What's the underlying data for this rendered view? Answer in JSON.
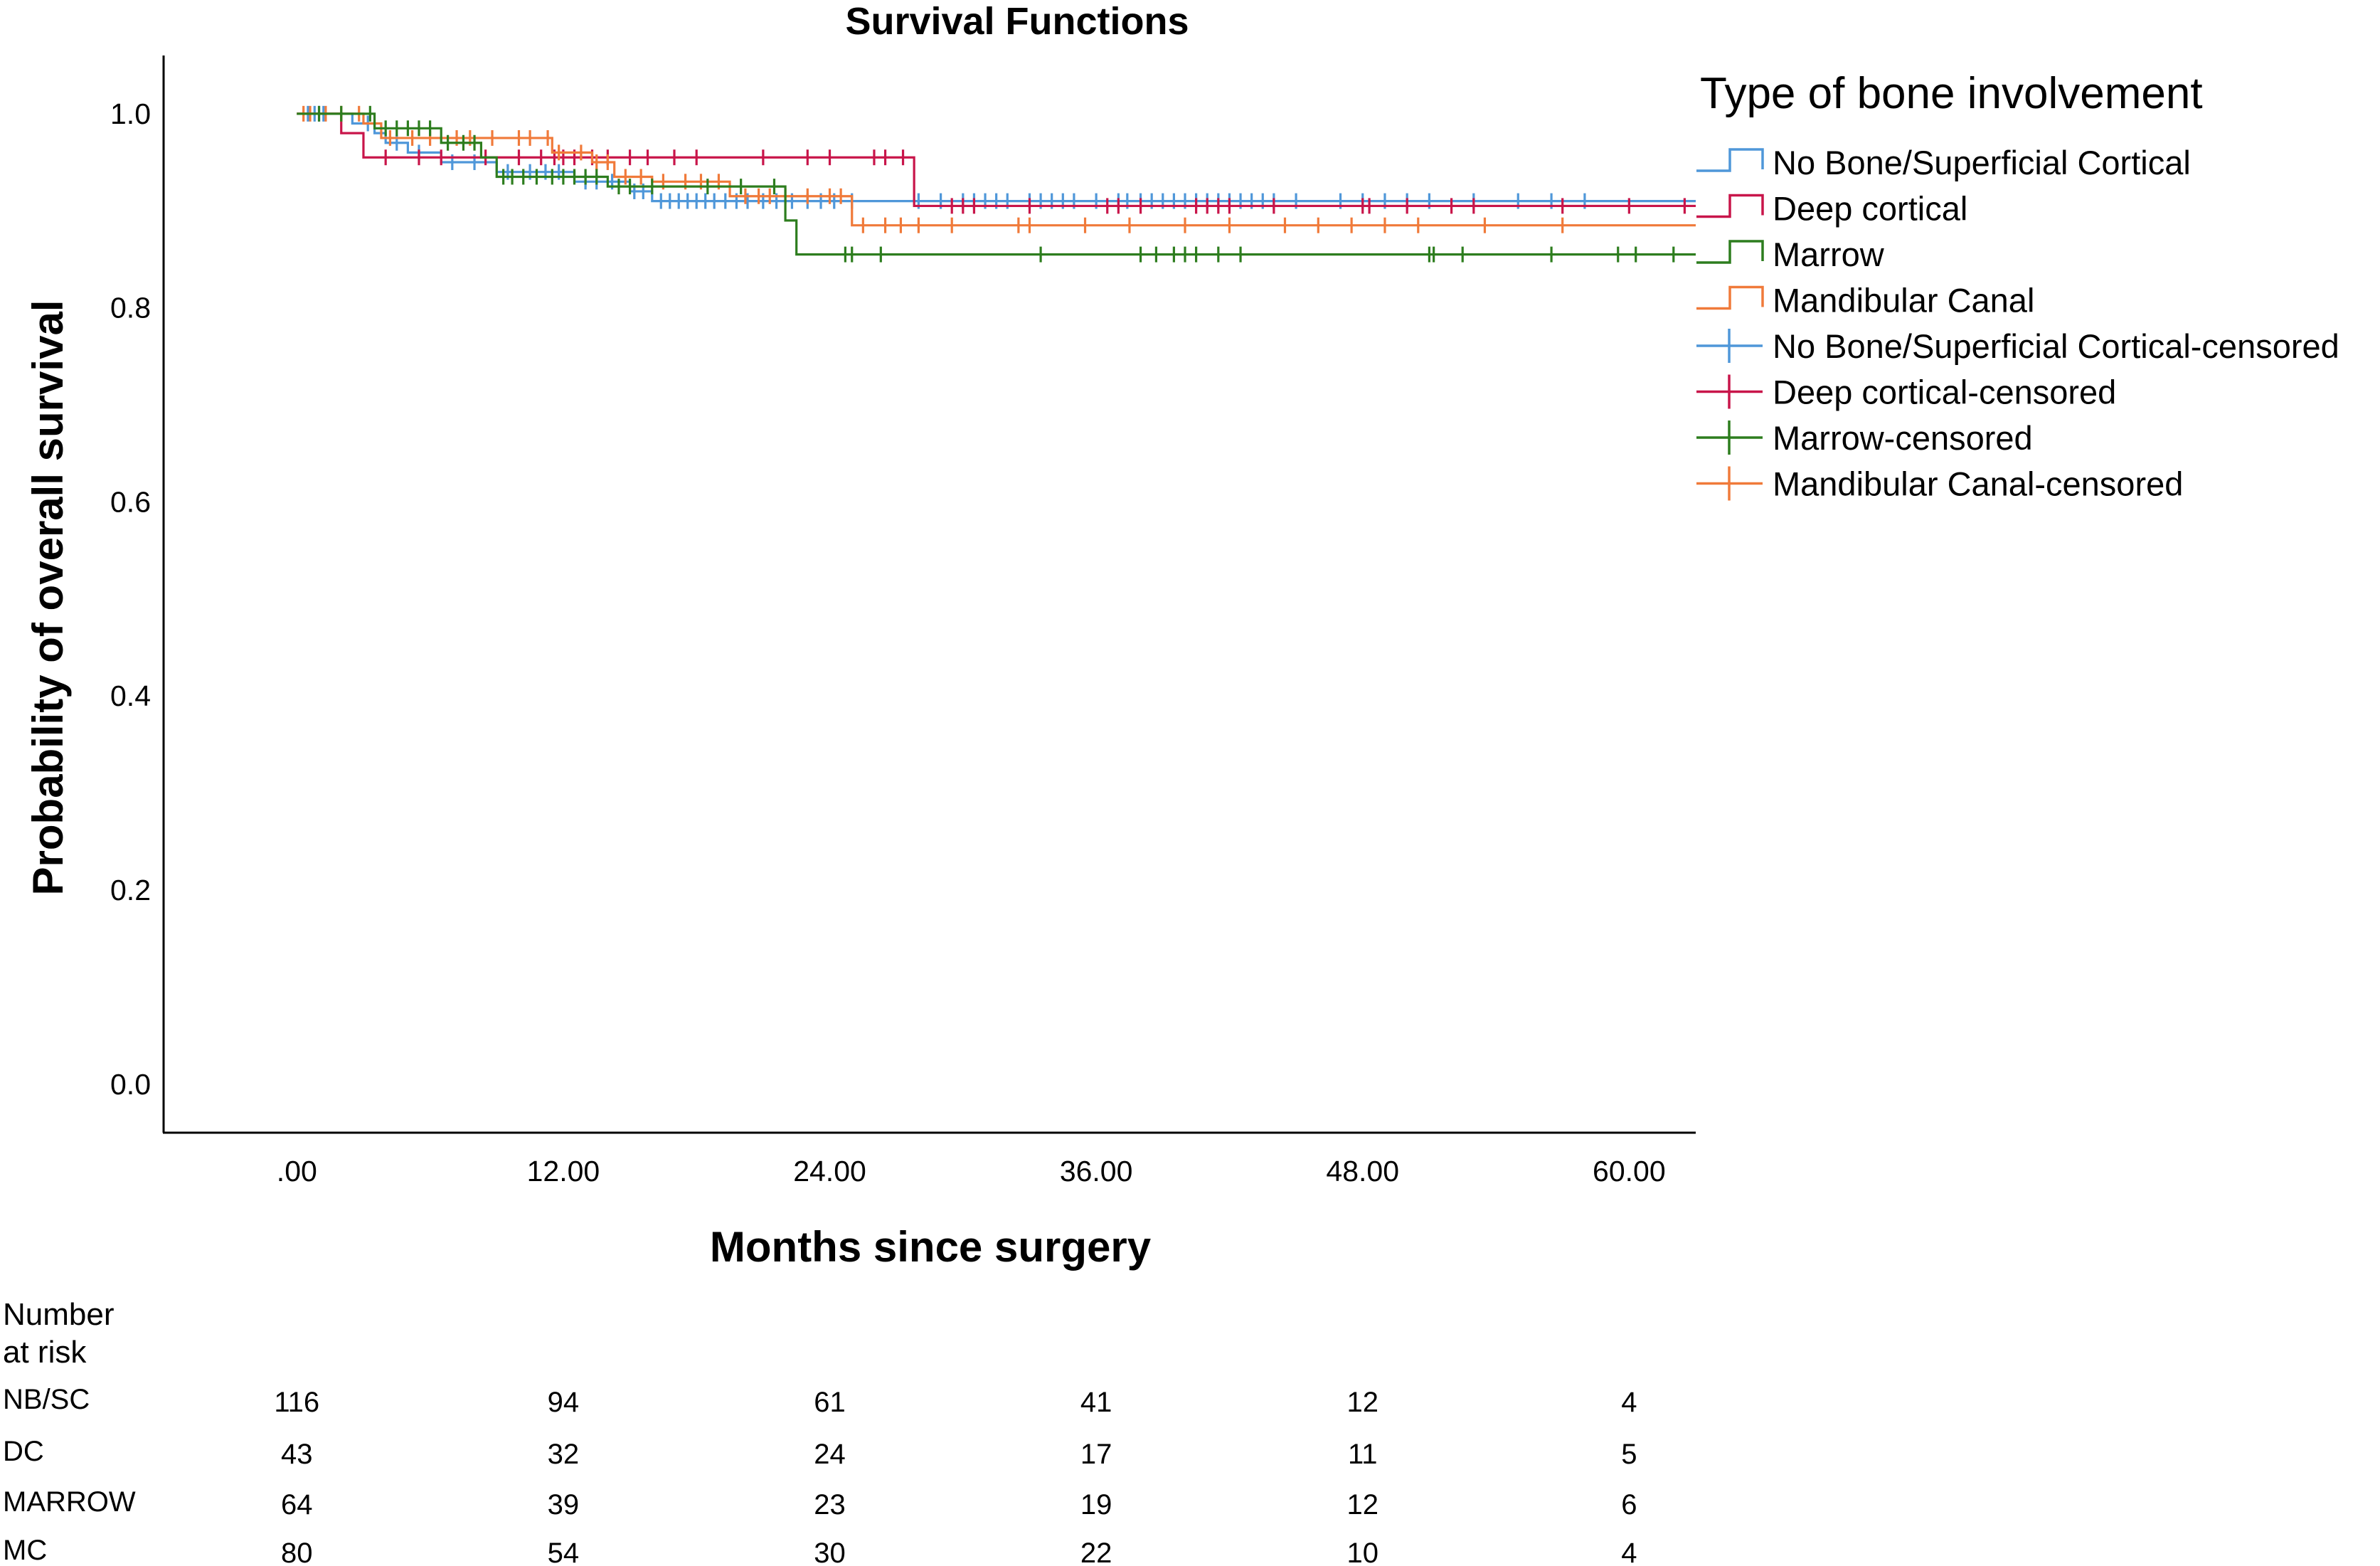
{
  "chart_data": {
    "type": "line",
    "title": "Survival Functions",
    "xlabel": "Months since surgery",
    "ylabel": "Probability of overall survival",
    "xlim": [
      -6,
      63
    ],
    "ylim": [
      -0.05,
      1.06
    ],
    "x_ticks": [
      0,
      12,
      24,
      36,
      48,
      60
    ],
    "x_tick_labels": [
      ".00",
      "12.00",
      "24.00",
      "36.00",
      "48.00",
      "60.00"
    ],
    "y_ticks": [
      0,
      0.2,
      0.4,
      0.6,
      0.8,
      1.0
    ],
    "y_tick_labels": [
      "0.0",
      "0.2",
      "0.4",
      "0.6",
      "0.8",
      "1.0"
    ],
    "grid": false,
    "legend": {
      "title": "Type of bone involvement",
      "position": "top-right",
      "entries": [
        {
          "label": "No Bone/Superficial Cortical",
          "kind": "step",
          "series": 0
        },
        {
          "label": "Deep cortical",
          "kind": "step",
          "series": 1
        },
        {
          "label": "Marrow",
          "kind": "step",
          "series": 2
        },
        {
          "label": "Mandibular Canal",
          "kind": "step",
          "series": 3
        },
        {
          "label": "No Bone/Superficial Cortical-censored",
          "kind": "censor",
          "series": 0
        },
        {
          "label": "Deep cortical-censored",
          "kind": "censor",
          "series": 1
        },
        {
          "label": "Marrow-censored",
          "kind": "censor",
          "series": 2
        },
        {
          "label": "Mandibular Canal-censored",
          "kind": "censor",
          "series": 3
        }
      ]
    },
    "series": [
      {
        "name": "No Bone/Superficial Cortical",
        "color": "#4f97d9",
        "steps": [
          [
            0,
            1.0
          ],
          [
            2.5,
            0.99
          ],
          [
            3.5,
            0.98
          ],
          [
            4.0,
            0.97
          ],
          [
            5.0,
            0.96
          ],
          [
            6.5,
            0.95
          ],
          [
            9.0,
            0.94
          ],
          [
            12.5,
            0.93
          ],
          [
            15.0,
            0.92
          ],
          [
            16.0,
            0.91
          ]
        ],
        "end_x": 63,
        "censored": [
          0.5,
          0.8,
          1.0,
          1.2,
          3.2,
          4.5,
          5.5,
          7.0,
          8.0,
          9.5,
          10.5,
          11.2,
          11.8,
          13.0,
          13.5,
          14.2,
          15.2,
          15.6,
          16.4,
          16.8,
          17.2,
          17.6,
          18.0,
          18.4,
          18.8,
          19.3,
          19.8,
          20.3,
          21.0,
          21.6,
          22.3,
          23.0,
          23.6,
          24.2,
          25.0,
          28.0,
          29.0,
          30.0,
          30.5,
          31.0,
          31.5,
          32.0,
          33.0,
          33.5,
          34.0,
          34.5,
          35.0,
          36.0,
          37.0,
          37.4,
          38.0,
          38.5,
          39.0,
          39.5,
          40.0,
          40.5,
          41.0,
          41.5,
          42.0,
          42.5,
          43.0,
          43.5,
          44.0,
          45.0,
          47.0,
          48.0,
          49.0,
          50.0,
          51.0,
          53.0,
          55.0,
          56.5,
          58.0
        ]
      },
      {
        "name": "Deep cortical",
        "color": "#c8154a",
        "steps": [
          [
            0,
            1.0
          ],
          [
            2.0,
            0.98
          ],
          [
            3.0,
            0.955
          ],
          [
            27.8,
            0.905
          ]
        ],
        "end_x": 63,
        "censored": [
          4.0,
          5.5,
          6.5,
          8.5,
          10.0,
          11.0,
          11.6,
          12.0,
          12.5,
          13.3,
          14.0,
          15.0,
          15.8,
          17.0,
          18.0,
          21.0,
          23.0,
          24.0,
          26.0,
          26.5,
          27.3,
          29.5,
          30.0,
          30.5,
          33.0,
          36.5,
          37.0,
          38.0,
          40.5,
          41.0,
          41.5,
          42.0,
          44.0,
          48.0,
          48.3,
          50.0,
          52.0,
          53.0,
          57.0,
          60.0,
          62.5
        ]
      },
      {
        "name": "Marrow",
        "color": "#2d7d1e",
        "steps": [
          [
            0,
            1.0
          ],
          [
            3.5,
            0.985
          ],
          [
            6.5,
            0.97
          ],
          [
            8.3,
            0.955
          ],
          [
            9.0,
            0.935
          ],
          [
            14.0,
            0.925
          ],
          [
            22.0,
            0.89
          ],
          [
            22.5,
            0.855
          ]
        ],
        "end_x": 63,
        "censored": [
          1.0,
          2.0,
          3.3,
          4.0,
          4.5,
          5.0,
          5.5,
          6.0,
          6.8,
          7.5,
          8.0,
          9.3,
          9.7,
          10.2,
          10.8,
          11.5,
          12.0,
          12.5,
          13.0,
          13.5,
          14.5,
          15.0,
          16.0,
          18.5,
          20.0,
          21.5,
          24.7,
          25.0,
          26.3,
          33.5,
          38.0,
          38.7,
          39.5,
          40.0,
          40.5,
          41.5,
          42.5,
          51.0,
          51.2,
          52.5,
          56.5,
          59.5,
          60.3,
          62.0
        ]
      },
      {
        "name": "Mandibular Canal",
        "color": "#f07a3a",
        "steps": [
          [
            0,
            1.0
          ],
          [
            3.0,
            0.99
          ],
          [
            3.8,
            0.975
          ],
          [
            11.5,
            0.96
          ],
          [
            13.3,
            0.95
          ],
          [
            14.3,
            0.935
          ],
          [
            16.0,
            0.93
          ],
          [
            19.5,
            0.915
          ],
          [
            25.0,
            0.885
          ]
        ],
        "end_x": 63,
        "censored": [
          0.3,
          0.6,
          1.3,
          2.0,
          2.8,
          4.2,
          5.2,
          6.0,
          7.2,
          7.8,
          8.8,
          10.0,
          10.5,
          11.3,
          11.8,
          12.8,
          13.5,
          14.0,
          14.8,
          15.5,
          16.5,
          17.5,
          18.2,
          19.0,
          20.2,
          20.8,
          21.3,
          22.0,
          23.0,
          24.0,
          24.5,
          25.5,
          26.5,
          27.2,
          28.0,
          29.5,
          32.5,
          33.0,
          35.5,
          37.5,
          40.0,
          42.0,
          44.5,
          46.0,
          47.5,
          49.0,
          50.5,
          53.5,
          57.0
        ]
      }
    ]
  },
  "risk_table": {
    "header_line1": "Number",
    "header_line2": "at risk",
    "rows": [
      {
        "label": "NB/SC",
        "values": [
          "116",
          "94",
          "61",
          "41",
          "12",
          "4"
        ]
      },
      {
        "label": "DC",
        "values": [
          "43",
          "32",
          "24",
          "17",
          "11",
          "5"
        ]
      },
      {
        "label": "MARROW",
        "values": [
          "64",
          "39",
          "23",
          "19",
          "12",
          "6"
        ]
      },
      {
        "label": "MC",
        "values": [
          "80",
          "54",
          "30",
          "22",
          "10",
          "4"
        ]
      }
    ]
  }
}
